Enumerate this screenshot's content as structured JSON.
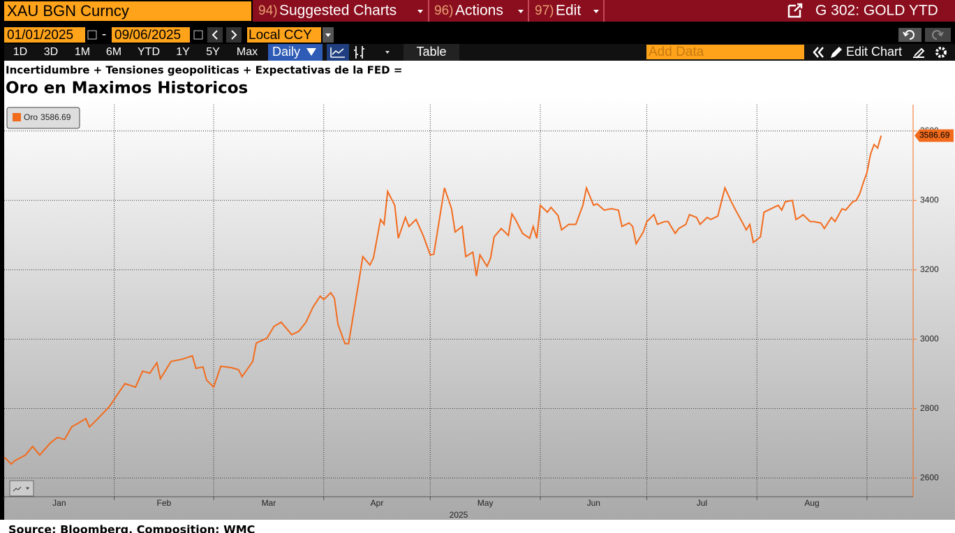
{
  "toolbar": {
    "security": "XAU BGN Curncy",
    "menus": [
      {
        "num": "94)",
        "label": "Suggested Charts"
      },
      {
        "num": "96)",
        "label": "Actions"
      },
      {
        "num": "97)",
        "label": "Edit"
      }
    ],
    "function": "G 302: GOLD YTD",
    "start_date": "01/01/2025",
    "separator": "-",
    "end_date": "09/06/2025",
    "currency": "Local CCY",
    "ranges": [
      "1D",
      "3D",
      "1M",
      "6M",
      "YTD",
      "1Y",
      "5Y",
      "Max"
    ],
    "frequency": "Daily",
    "table": "Table",
    "add_data": "Add Data",
    "edit_chart": "Edit Chart"
  },
  "chart_data": {
    "type": "line",
    "subtitle": "Incertidumbre + Tensiones geopoliticas + Expectativas de la FED =",
    "title": "Oro en Maximos Historicos",
    "x": [
      0,
      2,
      3,
      6,
      8,
      10,
      13,
      15,
      17,
      19,
      21,
      23,
      24,
      26,
      29,
      30,
      32,
      34,
      37,
      39,
      41,
      43,
      44,
      47,
      50,
      53,
      54,
      56,
      57,
      59,
      61,
      64,
      66,
      67,
      70,
      71,
      74,
      76,
      78,
      79,
      81,
      83,
      85,
      87,
      89,
      90,
      92,
      93,
      94,
      96,
      97,
      100,
      101,
      103,
      104,
      106,
      107,
      108,
      110,
      111,
      113,
      114,
      116,
      118,
      120,
      121,
      124,
      126,
      127,
      129,
      130,
      132,
      133,
      134,
      136,
      137,
      138,
      140,
      142,
      143,
      144,
      146,
      148,
      149,
      150,
      151,
      153,
      154,
      156,
      157,
      159,
      161,
      163,
      164,
      166,
      167,
      169,
      171,
      173,
      174,
      176,
      177,
      178,
      180,
      181,
      183,
      184,
      186,
      187,
      189,
      190,
      192,
      193,
      195,
      196,
      198,
      199,
      201,
      202,
      203,
      205,
      206,
      208,
      209,
      210,
      211,
      213,
      214,
      216,
      218,
      219,
      220,
      222,
      223,
      224,
      225,
      227,
      228,
      230,
      231,
      233,
      234,
      236,
      237,
      239,
      240,
      241,
      242,
      243,
      244,
      245,
      246,
      247
    ],
    "series": [
      {
        "name": "Oro",
        "color": "#f26b1d",
        "values": [
          2660,
          2640,
          2650,
          2666,
          2691,
          2666,
          2701,
          2717,
          2711,
          2747,
          2759,
          2771,
          2747,
          2767,
          2799,
          2811,
          2842,
          2872,
          2862,
          2908,
          2902,
          2932,
          2886,
          2936,
          2942,
          2952,
          2916,
          2920,
          2882,
          2862,
          2922,
          2918,
          2912,
          2892,
          2936,
          2989,
          3003,
          3037,
          3049,
          3037,
          3013,
          3023,
          3049,
          3093,
          3124,
          3114,
          3134,
          3118,
          3043,
          2987,
          2987,
          3174,
          3238,
          3214,
          3234,
          3345,
          3331,
          3426,
          3386,
          3291,
          3351,
          3325,
          3345,
          3299,
          3243,
          3245,
          3436,
          3376,
          3309,
          3325,
          3238,
          3251,
          3182,
          3243,
          3210,
          3234,
          3295,
          3319,
          3299,
          3361,
          3345,
          3305,
          3291,
          3325,
          3291,
          3386,
          3366,
          3380,
          3356,
          3315,
          3331,
          3331,
          3386,
          3436,
          3386,
          3390,
          3372,
          3376,
          3372,
          3325,
          3335,
          3325,
          3275,
          3309,
          3339,
          3359,
          3331,
          3339,
          3339,
          3305,
          3319,
          3331,
          3359,
          3351,
          3331,
          3351,
          3345,
          3355,
          3396,
          3436,
          3392,
          3372,
          3335,
          3315,
          3331,
          3279,
          3295,
          3366,
          3376,
          3386,
          3372,
          3396,
          3400,
          3345,
          3351,
          3359,
          3339,
          3339,
          3335,
          3319,
          3351,
          3339,
          3376,
          3372,
          3396,
          3400,
          3420,
          3452,
          3480,
          3533,
          3561,
          3551,
          3586.69
        ]
      }
    ],
    "xlim": [
      0,
      256
    ],
    "xticks": [
      0,
      31,
      59,
      90,
      120,
      151,
      181,
      212,
      243
    ],
    "months": [
      "Jan",
      "Feb",
      "Mar",
      "Apr",
      "May",
      "Jun",
      "Jul",
      "Aug"
    ],
    "year": "2025",
    "ylim": [
      2546,
      3676
    ],
    "yticks": [
      2600,
      2800,
      3000,
      3200,
      3400,
      3600
    ],
    "y_axis_side": "right",
    "grid": true,
    "source": "Source: Bloomberg. Composition: WMC"
  }
}
